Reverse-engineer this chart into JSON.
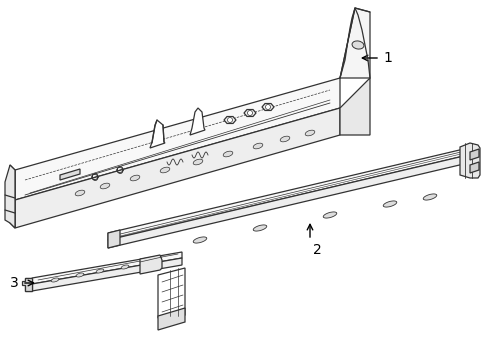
{
  "background_color": "#ffffff",
  "line_color": "#333333",
  "line_width": 0.9,
  "figsize": [
    4.9,
    3.6
  ],
  "dpi": 100,
  "part1_label": "1",
  "part2_label": "2",
  "part3_label": "3"
}
